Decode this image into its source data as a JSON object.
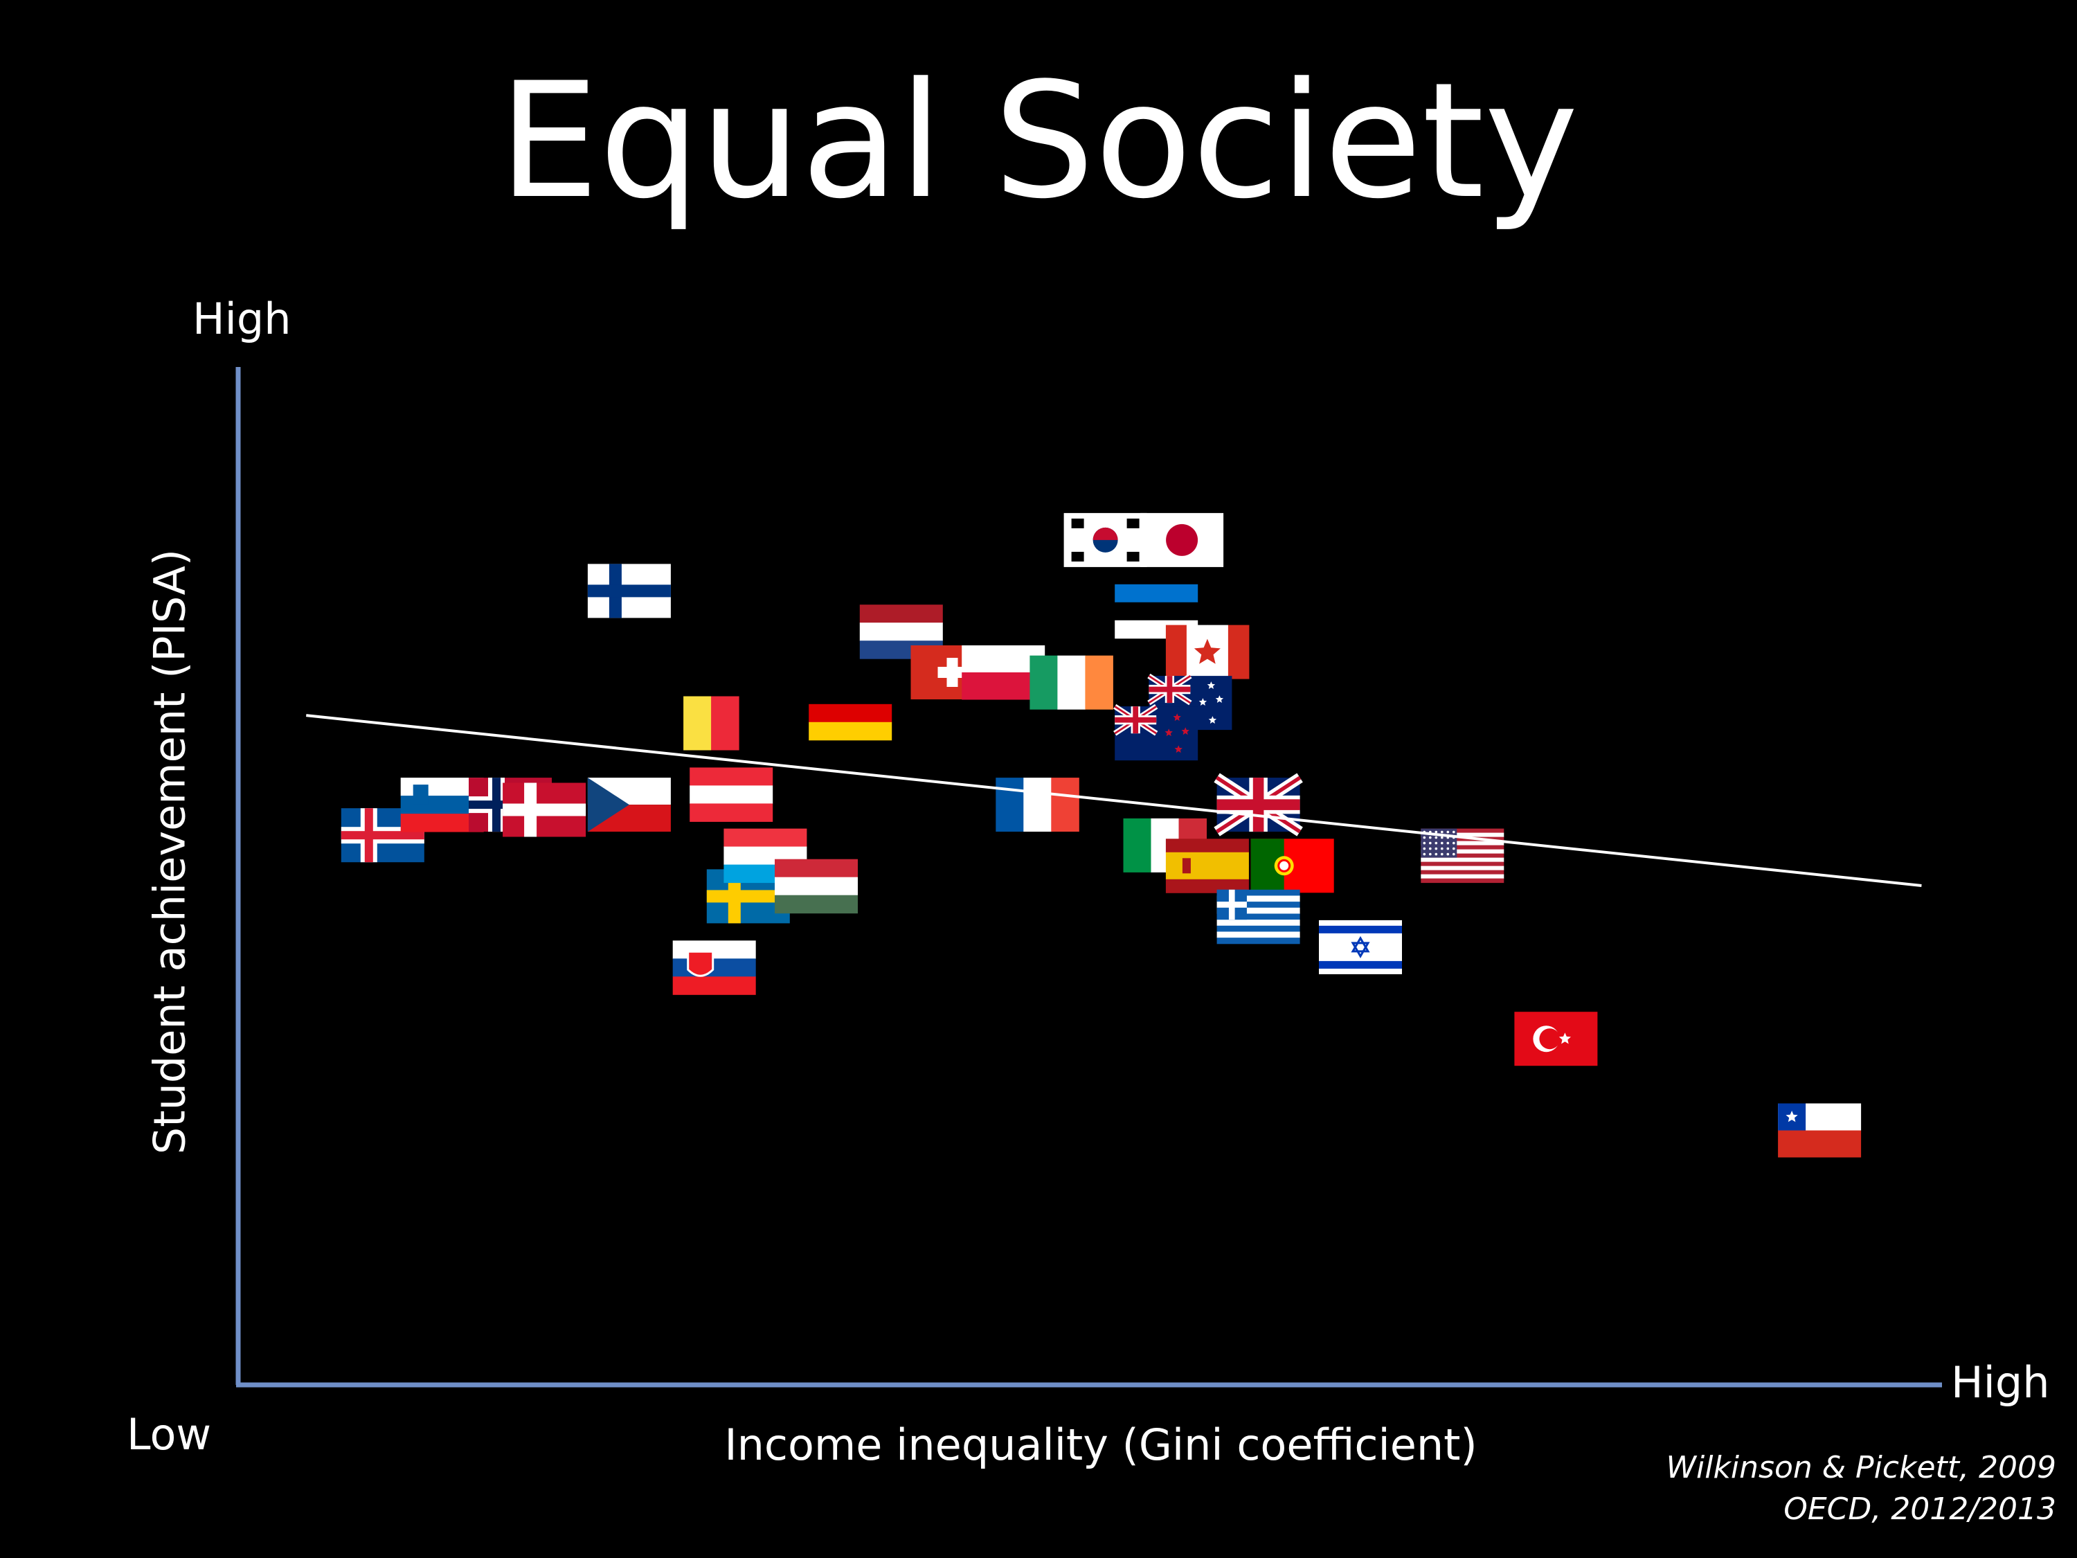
{
  "title": "Equal Society",
  "y_high_label": "High",
  "x_high_label": "High",
  "low_label": "Low",
  "source": [
    "Wilkinson & Pickett, 2009",
    "OECD, 2012/2013"
  ],
  "colors": {
    "background": "#000000",
    "axis": "#6f8fc8",
    "trendline": "#ffffff",
    "text": "#ffffff"
  },
  "chart_data": {
    "type": "scatter",
    "xlabel": "Income inequality (Gini coefficient)",
    "ylabel": "Student achievement (PISA)",
    "x_axis_ticks": "Low → High",
    "y_axis_ticks": "Low → High",
    "trendline": "negative linear fit",
    "points": [
      {
        "country": "Iceland",
        "flag": "iceland",
        "x": 0.085,
        "y": 0.54
      },
      {
        "country": "Slovenia",
        "flag": "slovenia",
        "x": 0.12,
        "y": 0.57
      },
      {
        "country": "Norway",
        "flag": "norway",
        "x": 0.16,
        "y": 0.57
      },
      {
        "country": "Denmark",
        "flag": "denmark",
        "x": 0.18,
        "y": 0.565
      },
      {
        "country": "Czech Republic",
        "flag": "czech",
        "x": 0.23,
        "y": 0.57
      },
      {
        "country": "Finland",
        "flag": "finland",
        "x": 0.23,
        "y": 0.78
      },
      {
        "country": "Belgium",
        "flag": "belgium",
        "x": 0.27,
        "y": 0.65
      },
      {
        "country": "Austria",
        "flag": "austria",
        "x": 0.29,
        "y": 0.58
      },
      {
        "country": "Slovakia",
        "flag": "slovakia",
        "x": 0.28,
        "y": 0.41
      },
      {
        "country": "Sweden",
        "flag": "sweden",
        "x": 0.3,
        "y": 0.48
      },
      {
        "country": "Luxembourg",
        "flag": "luxembourg",
        "x": 0.31,
        "y": 0.52
      },
      {
        "country": "Hungary",
        "flag": "hungary",
        "x": 0.34,
        "y": 0.49
      },
      {
        "country": "Germany",
        "flag": "germany",
        "x": 0.36,
        "y": 0.66
      },
      {
        "country": "Netherlands",
        "flag": "netherlands",
        "x": 0.39,
        "y": 0.74
      },
      {
        "country": "Switzerland",
        "flag": "switzerland",
        "x": 0.42,
        "y": 0.7
      },
      {
        "country": "Poland",
        "flag": "poland",
        "x": 0.45,
        "y": 0.7
      },
      {
        "country": "Ireland",
        "flag": "ireland",
        "x": 0.49,
        "y": 0.69
      },
      {
        "country": "France",
        "flag": "france",
        "x": 0.47,
        "y": 0.57
      },
      {
        "country": "Korea",
        "flag": "korea",
        "x": 0.51,
        "y": 0.83
      },
      {
        "country": "Japan",
        "flag": "japan",
        "x": 0.555,
        "y": 0.83
      },
      {
        "country": "Estonia",
        "flag": "estonia",
        "x": 0.54,
        "y": 0.76
      },
      {
        "country": "Canada",
        "flag": "canada",
        "x": 0.57,
        "y": 0.72
      },
      {
        "country": "Australia",
        "flag": "australia",
        "x": 0.56,
        "y": 0.67
      },
      {
        "country": "New Zealand",
        "flag": "newzealand",
        "x": 0.54,
        "y": 0.64
      },
      {
        "country": "United Kingdom",
        "flag": "uk",
        "x": 0.6,
        "y": 0.57
      },
      {
        "country": "Italy",
        "flag": "italy",
        "x": 0.545,
        "y": 0.53
      },
      {
        "country": "Spain",
        "flag": "spain",
        "x": 0.57,
        "y": 0.51
      },
      {
        "country": "Portugal",
        "flag": "portugal",
        "x": 0.62,
        "y": 0.51
      },
      {
        "country": "Greece",
        "flag": "greece",
        "x": 0.6,
        "y": 0.46
      },
      {
        "country": "Israel",
        "flag": "israel",
        "x": 0.66,
        "y": 0.43
      },
      {
        "country": "United States",
        "flag": "usa",
        "x": 0.72,
        "y": 0.52
      },
      {
        "country": "Turkey",
        "flag": "turkey",
        "x": 0.775,
        "y": 0.34
      },
      {
        "country": "Chile",
        "flag": "chile",
        "x": 0.93,
        "y": 0.25
      }
    ]
  }
}
